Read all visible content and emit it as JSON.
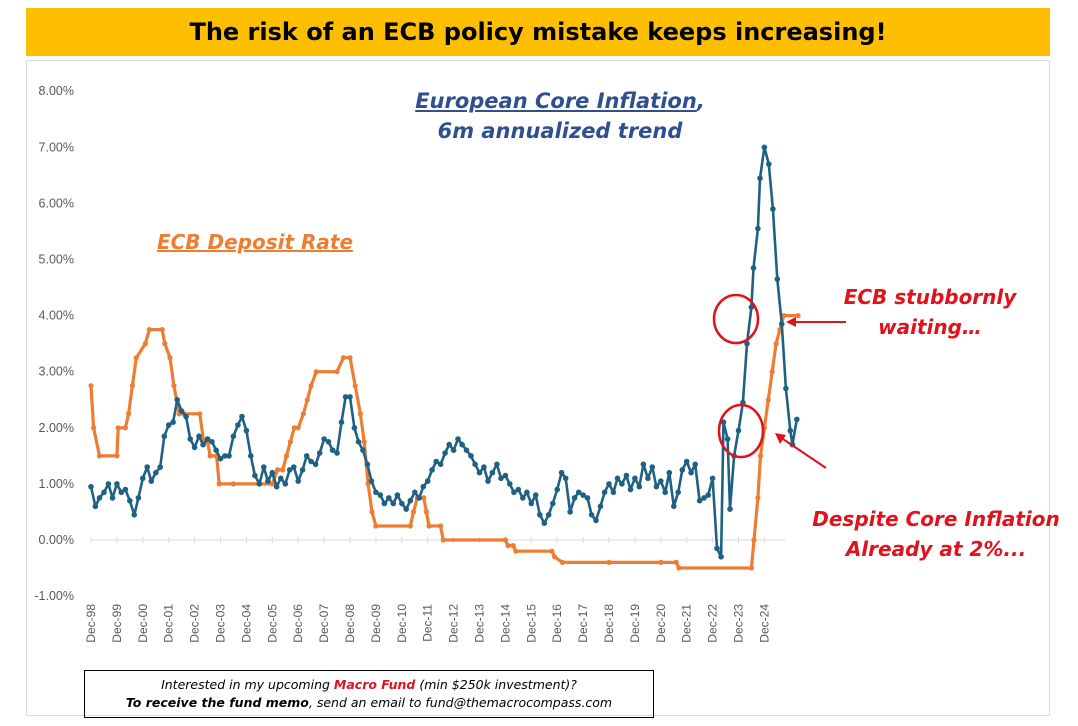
{
  "banner": {
    "title": "The risk of an ECB policy mistake keeps increasing!",
    "color": "#fdbf00"
  },
  "annotations": {
    "core_line1": "European Core Inflation",
    "core_comma": ",",
    "core_line2": "6m annualized trend",
    "ecb_label": "ECB Deposit Rate",
    "waiting_line1": "ECB stubbornly",
    "waiting_line2": "waiting…",
    "despite_line1": "Despite Core Inflation",
    "despite_line2": "Already at 2%..."
  },
  "memo": {
    "l1_pre": "Interested in my upcoming ",
    "l1_fund": "Macro Fund",
    "l1_post": " (min $250k investment)?",
    "l2_bold": "To receive the fund memo",
    "l2_rest": ", send an email to fund@themacrocompass.com"
  },
  "colors": {
    "inflation": "#1f6183",
    "deposit": "#ed7d31",
    "annotation_red": "#e0121b",
    "annotation_blue": "#2f4f8f"
  },
  "chart_data": {
    "type": "line",
    "title": "The risk of an ECB policy mistake keeps increasing!",
    "x_unit": "years since Dec-98",
    "ylim": [
      -1.0,
      8.0
    ],
    "y_ticks": [
      "-1.00%",
      "0.00%",
      "1.00%",
      "2.00%",
      "3.00%",
      "4.00%",
      "5.00%",
      "6.00%",
      "7.00%",
      "8.00%"
    ],
    "y_tick_values": [
      -1,
      0,
      1,
      2,
      3,
      4,
      5,
      6,
      7,
      8
    ],
    "x_ticks": [
      "Dec-98",
      "Dec-99",
      "Dec-00",
      "Dec-01",
      "Dec-02",
      "Dec-03",
      "Dec-04",
      "Dec-05",
      "Dec-06",
      "Dec-07",
      "Dec-08",
      "Dec-09",
      "Dec-10",
      "Dec-11",
      "Dec-12",
      "Dec-13",
      "Dec-14",
      "Dec-15",
      "Dec-16",
      "Dec-17",
      "Dec-18",
      "Dec-19",
      "Dec-20",
      "Dec-21",
      "Dec-22",
      "Dec-23",
      "Dec-24"
    ],
    "series": [
      {
        "name": "European Core Inflation, 6m annualized trend",
        "color": "#1f6183",
        "points": [
          [
            0,
            0.95
          ],
          [
            0.17,
            0.6
          ],
          [
            0.33,
            0.75
          ],
          [
            0.5,
            0.85
          ],
          [
            0.67,
            1.0
          ],
          [
            0.83,
            0.75
          ],
          [
            1.0,
            1.0
          ],
          [
            1.17,
            0.85
          ],
          [
            1.33,
            0.9
          ],
          [
            1.5,
            0.7
          ],
          [
            1.67,
            0.45
          ],
          [
            1.83,
            0.75
          ],
          [
            2.0,
            1.1
          ],
          [
            2.17,
            1.3
          ],
          [
            2.33,
            1.05
          ],
          [
            2.5,
            1.2
          ],
          [
            2.67,
            1.3
          ],
          [
            2.83,
            1.85
          ],
          [
            3.0,
            2.05
          ],
          [
            3.17,
            2.1
          ],
          [
            3.33,
            2.5
          ],
          [
            3.5,
            2.3
          ],
          [
            3.67,
            2.2
          ],
          [
            3.83,
            1.8
          ],
          [
            4.0,
            1.65
          ],
          [
            4.17,
            1.85
          ],
          [
            4.33,
            1.7
          ],
          [
            4.5,
            1.8
          ],
          [
            4.67,
            1.75
          ],
          [
            4.83,
            1.6
          ],
          [
            5.0,
            1.45
          ],
          [
            5.17,
            1.5
          ],
          [
            5.33,
            1.5
          ],
          [
            5.5,
            1.85
          ],
          [
            5.67,
            2.05
          ],
          [
            5.83,
            2.2
          ],
          [
            6.0,
            1.95
          ],
          [
            6.17,
            1.5
          ],
          [
            6.33,
            1.15
          ],
          [
            6.5,
            1.0
          ],
          [
            6.67,
            1.3
          ],
          [
            6.83,
            1.05
          ],
          [
            7.0,
            1.2
          ],
          [
            7.17,
            0.95
          ],
          [
            7.33,
            1.1
          ],
          [
            7.5,
            1.0
          ],
          [
            7.67,
            1.25
          ],
          [
            7.83,
            1.3
          ],
          [
            8.0,
            1.05
          ],
          [
            8.17,
            1.25
          ],
          [
            8.33,
            1.5
          ],
          [
            8.5,
            1.4
          ],
          [
            8.67,
            1.35
          ],
          [
            8.83,
            1.55
          ],
          [
            9.0,
            1.8
          ],
          [
            9.17,
            1.75
          ],
          [
            9.33,
            1.6
          ],
          [
            9.5,
            1.55
          ],
          [
            9.67,
            2.1
          ],
          [
            9.83,
            2.55
          ],
          [
            10.0,
            2.55
          ],
          [
            10.17,
            2.0
          ],
          [
            10.33,
            1.75
          ],
          [
            10.5,
            1.6
          ],
          [
            10.67,
            1.35
          ],
          [
            10.83,
            1.05
          ],
          [
            11.0,
            0.85
          ],
          [
            11.17,
            0.8
          ],
          [
            11.33,
            0.65
          ],
          [
            11.5,
            0.75
          ],
          [
            11.67,
            0.65
          ],
          [
            11.83,
            0.8
          ],
          [
            12.0,
            0.65
          ],
          [
            12.17,
            0.55
          ],
          [
            12.33,
            0.7
          ],
          [
            12.5,
            0.85
          ],
          [
            12.67,
            0.75
          ],
          [
            12.83,
            0.95
          ],
          [
            13.0,
            1.05
          ],
          [
            13.17,
            1.25
          ],
          [
            13.33,
            1.4
          ],
          [
            13.5,
            1.35
          ],
          [
            13.67,
            1.55
          ],
          [
            13.83,
            1.7
          ],
          [
            14.0,
            1.6
          ],
          [
            14.17,
            1.8
          ],
          [
            14.33,
            1.7
          ],
          [
            14.5,
            1.6
          ],
          [
            14.67,
            1.5
          ],
          [
            14.83,
            1.35
          ],
          [
            15.0,
            1.2
          ],
          [
            15.17,
            1.3
          ],
          [
            15.33,
            1.05
          ],
          [
            15.5,
            1.2
          ],
          [
            15.67,
            1.35
          ],
          [
            15.83,
            1.1
          ],
          [
            16.0,
            1.15
          ],
          [
            16.17,
            1.0
          ],
          [
            16.33,
            0.85
          ],
          [
            16.5,
            0.9
          ],
          [
            16.67,
            0.75
          ],
          [
            16.83,
            0.85
          ],
          [
            17.0,
            0.65
          ],
          [
            17.17,
            0.8
          ],
          [
            17.33,
            0.45
          ],
          [
            17.5,
            0.3
          ],
          [
            17.67,
            0.45
          ],
          [
            17.83,
            0.65
          ],
          [
            18.0,
            0.9
          ],
          [
            18.17,
            1.2
          ],
          [
            18.33,
            1.1
          ],
          [
            18.5,
            0.5
          ],
          [
            18.67,
            0.75
          ],
          [
            18.83,
            0.85
          ],
          [
            19.0,
            0.8
          ],
          [
            19.17,
            0.75
          ],
          [
            19.33,
            0.45
          ],
          [
            19.5,
            0.35
          ],
          [
            19.67,
            0.6
          ],
          [
            19.83,
            0.85
          ],
          [
            20.0,
            1.0
          ],
          [
            20.17,
            0.85
          ],
          [
            20.33,
            1.1
          ],
          [
            20.5,
            1.0
          ],
          [
            20.67,
            1.15
          ],
          [
            20.83,
            0.9
          ],
          [
            21.0,
            1.1
          ],
          [
            21.17,
            0.95
          ],
          [
            21.33,
            1.35
          ],
          [
            21.5,
            1.1
          ],
          [
            21.67,
            1.3
          ],
          [
            21.83,
            0.95
          ],
          [
            22.0,
            1.05
          ],
          [
            22.17,
            0.85
          ],
          [
            22.33,
            1.2
          ],
          [
            22.5,
            0.6
          ],
          [
            22.67,
            0.85
          ],
          [
            22.83,
            1.25
          ],
          [
            23.0,
            1.4
          ],
          [
            23.17,
            1.2
          ],
          [
            23.33,
            1.35
          ],
          [
            23.5,
            0.7
          ],
          [
            23.67,
            0.75
          ],
          [
            23.83,
            0.8
          ],
          [
            24.0,
            1.1
          ],
          [
            24.17,
            -0.15
          ],
          [
            24.33,
            -0.3
          ],
          [
            24.42,
            2.1
          ],
          [
            24.58,
            1.8
          ],
          [
            24.67,
            0.55
          ],
          [
            24.83,
            1.5
          ],
          [
            25.0,
            1.95
          ],
          [
            25.17,
            2.45
          ],
          [
            25.33,
            3.5
          ],
          [
            25.5,
            4.15
          ],
          [
            25.58,
            4.85
          ],
          [
            25.75,
            5.55
          ],
          [
            25.83,
            6.45
          ],
          [
            26.0,
            7.0
          ],
          [
            26.17,
            6.7
          ],
          [
            26.33,
            5.9
          ],
          [
            26.5,
            4.65
          ],
          [
            26.67,
            3.85
          ],
          [
            26.83,
            2.7
          ],
          [
            27.0,
            1.95
          ],
          [
            27.08,
            1.7
          ],
          [
            27.25,
            2.15
          ]
        ]
      },
      {
        "name": "ECB Deposit Rate",
        "color": "#ed7d31",
        "points": [
          [
            0,
            2.75
          ],
          [
            0.1,
            2.0
          ],
          [
            0.33,
            1.5
          ],
          [
            1.0,
            1.5
          ],
          [
            1.05,
            2.0
          ],
          [
            1.33,
            2.0
          ],
          [
            1.45,
            2.25
          ],
          [
            1.6,
            2.75
          ],
          [
            1.75,
            3.25
          ],
          [
            2.1,
            3.5
          ],
          [
            2.25,
            3.75
          ],
          [
            2.75,
            3.75
          ],
          [
            2.85,
            3.5
          ],
          [
            3.05,
            3.25
          ],
          [
            3.2,
            2.75
          ],
          [
            3.4,
            2.25
          ],
          [
            3.6,
            2.25
          ],
          [
            4.2,
            2.25
          ],
          [
            4.35,
            1.75
          ],
          [
            4.5,
            1.75
          ],
          [
            4.6,
            1.5
          ],
          [
            4.85,
            1.5
          ],
          [
            4.95,
            1.0
          ],
          [
            5.5,
            1.0
          ],
          [
            7.0,
            1.0
          ],
          [
            7.2,
            1.25
          ],
          [
            7.4,
            1.25
          ],
          [
            7.55,
            1.5
          ],
          [
            7.7,
            1.75
          ],
          [
            7.85,
            2.0
          ],
          [
            8.0,
            2.0
          ],
          [
            8.2,
            2.25
          ],
          [
            8.35,
            2.5
          ],
          [
            8.5,
            2.75
          ],
          [
            8.7,
            3.0
          ],
          [
            9.5,
            3.0
          ],
          [
            9.75,
            3.25
          ],
          [
            10.0,
            3.25
          ],
          [
            10.2,
            2.75
          ],
          [
            10.4,
            2.25
          ],
          [
            10.55,
            1.75
          ],
          [
            10.7,
            1.0
          ],
          [
            10.85,
            0.5
          ],
          [
            11.0,
            0.25
          ],
          [
            12.33,
            0.25
          ],
          [
            12.45,
            0.5
          ],
          [
            12.6,
            0.75
          ],
          [
            12.85,
            0.75
          ],
          [
            12.95,
            0.5
          ],
          [
            13.05,
            0.25
          ],
          [
            13.5,
            0.25
          ],
          [
            13.6,
            0.0
          ],
          [
            16.0,
            0.0
          ],
          [
            16.1,
            -0.1
          ],
          [
            16.3,
            -0.1
          ],
          [
            16.4,
            -0.2
          ],
          [
            17.8,
            -0.2
          ],
          [
            17.9,
            -0.3
          ],
          [
            18.2,
            -0.4
          ],
          [
            20.0,
            -0.4
          ],
          [
            22.0,
            -0.4
          ],
          [
            22.6,
            -0.4
          ],
          [
            22.7,
            -0.5
          ],
          [
            25.5,
            -0.5
          ],
          [
            25.6,
            0.0
          ],
          [
            25.75,
            0.75
          ],
          [
            25.85,
            1.5
          ],
          [
            26.0,
            2.0
          ],
          [
            26.15,
            2.5
          ],
          [
            26.3,
            3.0
          ],
          [
            26.45,
            3.5
          ],
          [
            26.6,
            3.75
          ],
          [
            26.75,
            4.0
          ],
          [
            27.3,
            4.0
          ]
        ]
      }
    ]
  }
}
